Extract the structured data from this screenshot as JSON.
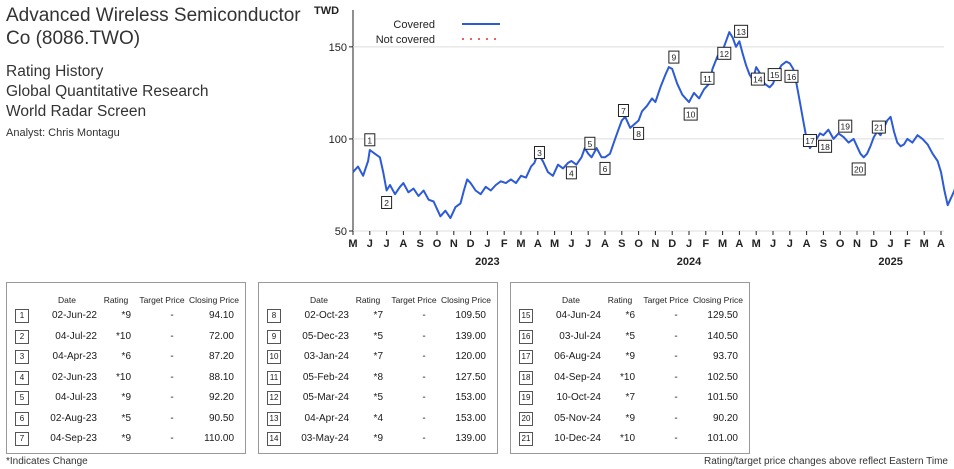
{
  "header": {
    "title": "Advanced Wireless Semiconductor Co (8086.TWO)",
    "subtitle1": "Rating History",
    "subtitle2": "Global Quantitative Research",
    "subtitle3": "World Radar Screen",
    "analyst": "Analyst: Chris Montagu"
  },
  "table_headers": {
    "date": "Date",
    "rating": "Rating",
    "target": "Target Price",
    "closing": "Closing Price"
  },
  "table1": [
    {
      "n": "1",
      "date": "02-Jun-22",
      "rating": "*9",
      "target": "-",
      "close": "94.10"
    },
    {
      "n": "2",
      "date": "04-Jul-22",
      "rating": "*10",
      "target": "-",
      "close": "72.00"
    },
    {
      "n": "3",
      "date": "04-Apr-23",
      "rating": "*6",
      "target": "-",
      "close": "87.20"
    },
    {
      "n": "4",
      "date": "02-Jun-23",
      "rating": "*10",
      "target": "-",
      "close": "88.10"
    },
    {
      "n": "5",
      "date": "04-Jul-23",
      "rating": "*9",
      "target": "-",
      "close": "92.20"
    },
    {
      "n": "6",
      "date": "02-Aug-23",
      "rating": "*5",
      "target": "-",
      "close": "90.50"
    },
    {
      "n": "7",
      "date": "04-Sep-23",
      "rating": "*9",
      "target": "-",
      "close": "110.00"
    }
  ],
  "table2": [
    {
      "n": "8",
      "date": "02-Oct-23",
      "rating": "*7",
      "target": "-",
      "close": "109.50"
    },
    {
      "n": "9",
      "date": "05-Dec-23",
      "rating": "*5",
      "target": "-",
      "close": "139.00"
    },
    {
      "n": "10",
      "date": "03-Jan-24",
      "rating": "*7",
      "target": "-",
      "close": "120.00"
    },
    {
      "n": "11",
      "date": "05-Feb-24",
      "rating": "*8",
      "target": "-",
      "close": "127.50"
    },
    {
      "n": "12",
      "date": "05-Mar-24",
      "rating": "*5",
      "target": "-",
      "close": "153.00"
    },
    {
      "n": "13",
      "date": "04-Apr-24",
      "rating": "*4",
      "target": "-",
      "close": "153.00"
    },
    {
      "n": "14",
      "date": "03-May-24",
      "rating": "*9",
      "target": "-",
      "close": "139.00"
    }
  ],
  "table3": [
    {
      "n": "15",
      "date": "04-Jun-24",
      "rating": "*6",
      "target": "-",
      "close": "129.50"
    },
    {
      "n": "16",
      "date": "03-Jul-24",
      "rating": "*5",
      "target": "-",
      "close": "140.50"
    },
    {
      "n": "17",
      "date": "06-Aug-24",
      "rating": "*9",
      "target": "-",
      "close": "93.70"
    },
    {
      "n": "18",
      "date": "04-Sep-24",
      "rating": "*10",
      "target": "-",
      "close": "102.50"
    },
    {
      "n": "19",
      "date": "10-Oct-24",
      "rating": "*7",
      "target": "-",
      "close": "101.50"
    },
    {
      "n": "20",
      "date": "05-Nov-24",
      "rating": "*9",
      "target": "-",
      "close": "90.20"
    },
    {
      "n": "21",
      "date": "10-Dec-24",
      "rating": "*10",
      "target": "-",
      "close": "101.00"
    }
  ],
  "footer": {
    "left": "*Indicates Change",
    "right": "Rating/target price changes above reflect Eastern Time"
  },
  "chart_data": {
    "type": "line",
    "ylabel": "TWD",
    "ylim": [
      50,
      170
    ],
    "yticks": [
      50,
      100,
      150
    ],
    "month_labels": [
      "M",
      "J",
      "J",
      "A",
      "S",
      "O",
      "N",
      "D",
      "J",
      "F",
      "M",
      "A",
      "M",
      "J",
      "J",
      "A",
      "S",
      "O",
      "N",
      "D",
      "J",
      "F",
      "M",
      "A",
      "M",
      "J",
      "J",
      "A",
      "S",
      "O",
      "N",
      "D",
      "J",
      "F",
      "M",
      "A"
    ],
    "year_labels": [
      {
        "label": "2023",
        "month_index": 8
      },
      {
        "label": "2024",
        "month_index": 20
      },
      {
        "label": "2025",
        "month_index": 32
      }
    ],
    "legend": [
      {
        "name": "Covered",
        "color": "#2d5bd6",
        "style": "solid"
      },
      {
        "name": "Not covered",
        "color": "#e03030",
        "style": "dotted"
      }
    ],
    "series": [
      {
        "name": "Covered",
        "color": "#2d5bd6",
        "points": [
          [
            0,
            82
          ],
          [
            0.3,
            85
          ],
          [
            0.6,
            80
          ],
          [
            0.9,
            88
          ],
          [
            1.0,
            94
          ],
          [
            1.3,
            92
          ],
          [
            1.6,
            90
          ],
          [
            1.8,
            82
          ],
          [
            2.0,
            72
          ],
          [
            2.2,
            75
          ],
          [
            2.5,
            70
          ],
          [
            2.8,
            74
          ],
          [
            3.0,
            76
          ],
          [
            3.3,
            71
          ],
          [
            3.6,
            73
          ],
          [
            3.9,
            69
          ],
          [
            4.2,
            72
          ],
          [
            4.5,
            67
          ],
          [
            4.8,
            66
          ],
          [
            5.0,
            62
          ],
          [
            5.2,
            58
          ],
          [
            5.5,
            61
          ],
          [
            5.8,
            57
          ],
          [
            6.1,
            63
          ],
          [
            6.4,
            65
          ],
          [
            6.6,
            72
          ],
          [
            6.8,
            78
          ],
          [
            7.0,
            76
          ],
          [
            7.3,
            72
          ],
          [
            7.6,
            70
          ],
          [
            7.9,
            74
          ],
          [
            8.2,
            72
          ],
          [
            8.5,
            75
          ],
          [
            8.8,
            77
          ],
          [
            9.1,
            76
          ],
          [
            9.4,
            78
          ],
          [
            9.7,
            76
          ],
          [
            10.0,
            80
          ],
          [
            10.3,
            79
          ],
          [
            10.6,
            85
          ],
          [
            10.8,
            87
          ],
          [
            11.0,
            92
          ],
          [
            11.3,
            88
          ],
          [
            11.6,
            82
          ],
          [
            11.9,
            80
          ],
          [
            12.2,
            86
          ],
          [
            12.5,
            84
          ],
          [
            12.8,
            87
          ],
          [
            13.0,
            88
          ],
          [
            13.3,
            86
          ],
          [
            13.6,
            90
          ],
          [
            13.8,
            95
          ],
          [
            14.0,
            92
          ],
          [
            14.2,
            90
          ],
          [
            14.5,
            95
          ],
          [
            14.8,
            90
          ],
          [
            15.0,
            90
          ],
          [
            15.3,
            92
          ],
          [
            15.6,
            100
          ],
          [
            15.8,
            105
          ],
          [
            16.0,
            110
          ],
          [
            16.2,
            112
          ],
          [
            16.5,
            106
          ],
          [
            17.0,
            110
          ],
          [
            17.2,
            115
          ],
          [
            17.5,
            118
          ],
          [
            17.8,
            122
          ],
          [
            18.0,
            120
          ],
          [
            18.3,
            128
          ],
          [
            18.6,
            135
          ],
          [
            18.8,
            139
          ],
          [
            19.0,
            138
          ],
          [
            19.3,
            130
          ],
          [
            19.6,
            124
          ],
          [
            19.8,
            122
          ],
          [
            20.0,
            120
          ],
          [
            20.3,
            125
          ],
          [
            20.6,
            122
          ],
          [
            20.9,
            127
          ],
          [
            21.2,
            130
          ],
          [
            21.4,
            138
          ],
          [
            21.7,
            145
          ],
          [
            22.0,
            148
          ],
          [
            22.2,
            153
          ],
          [
            22.4,
            158
          ],
          [
            22.6,
            155
          ],
          [
            22.8,
            150
          ],
          [
            23.0,
            153
          ],
          [
            23.2,
            146
          ],
          [
            23.4,
            140
          ],
          [
            23.6,
            135
          ],
          [
            23.8,
            132
          ],
          [
            24.0,
            139
          ],
          [
            24.2,
            136
          ],
          [
            24.5,
            130
          ],
          [
            24.8,
            128
          ],
          [
            25.0,
            130
          ],
          [
            25.2,
            135
          ],
          [
            25.5,
            140
          ],
          [
            25.8,
            142
          ],
          [
            26.0,
            141
          ],
          [
            26.2,
            138
          ],
          [
            26.4,
            130
          ],
          [
            26.6,
            120
          ],
          [
            26.8,
            110
          ],
          [
            27.0,
            100
          ],
          [
            27.2,
            95
          ],
          [
            27.4,
            98
          ],
          [
            27.6,
            100
          ],
          [
            27.8,
            103
          ],
          [
            28.0,
            102
          ],
          [
            28.3,
            105
          ],
          [
            28.6,
            100
          ],
          [
            28.9,
            103
          ],
          [
            29.2,
            101
          ],
          [
            29.5,
            98
          ],
          [
            29.8,
            100
          ],
          [
            30.0,
            96
          ],
          [
            30.2,
            92
          ],
          [
            30.4,
            90
          ],
          [
            30.6,
            92
          ],
          [
            30.8,
            96
          ],
          [
            31.0,
            101
          ],
          [
            31.2,
            104
          ],
          [
            31.4,
            102
          ],
          [
            31.6,
            106
          ],
          [
            31.8,
            110
          ],
          [
            32.0,
            112
          ],
          [
            32.2,
            104
          ],
          [
            32.4,
            98
          ],
          [
            32.6,
            96
          ],
          [
            32.8,
            97
          ],
          [
            33.0,
            100
          ],
          [
            33.3,
            98
          ],
          [
            33.6,
            102
          ],
          [
            33.9,
            100
          ],
          [
            34.2,
            97
          ],
          [
            34.5,
            92
          ],
          [
            34.8,
            88
          ],
          [
            35.0,
            82
          ],
          [
            35.2,
            72
          ],
          [
            35.4,
            64
          ],
          [
            35.6,
            68
          ],
          [
            35.8,
            72
          ],
          [
            36.0,
            78
          ]
        ]
      }
    ],
    "annotations": [
      {
        "n": "1",
        "m": 1.0,
        "v": 94.1
      },
      {
        "n": "2",
        "m": 2.0,
        "v": 72.0
      },
      {
        "n": "3",
        "m": 11.1,
        "v": 87.2
      },
      {
        "n": "4",
        "m": 13.0,
        "v": 88.1
      },
      {
        "n": "5",
        "m": 14.1,
        "v": 92.2
      },
      {
        "n": "6",
        "m": 15.0,
        "v": 90.5
      },
      {
        "n": "7",
        "m": 16.1,
        "v": 110.0
      },
      {
        "n": "8",
        "m": 17.0,
        "v": 109.5
      },
      {
        "n": "9",
        "m": 19.1,
        "v": 139.0
      },
      {
        "n": "10",
        "m": 20.1,
        "v": 120.0
      },
      {
        "n": "11",
        "m": 21.1,
        "v": 127.5
      },
      {
        "n": "12",
        "m": 22.1,
        "v": 153.0
      },
      {
        "n": "13",
        "m": 23.1,
        "v": 153.0
      },
      {
        "n": "14",
        "m": 24.1,
        "v": 139.0
      },
      {
        "n": "15",
        "m": 25.1,
        "v": 129.5
      },
      {
        "n": "16",
        "m": 26.1,
        "v": 140.5
      },
      {
        "n": "17",
        "m": 27.2,
        "v": 93.7
      },
      {
        "n": "18",
        "m": 28.1,
        "v": 102.5
      },
      {
        "n": "19",
        "m": 29.3,
        "v": 101.5
      },
      {
        "n": "20",
        "m": 30.1,
        "v": 90.2
      },
      {
        "n": "21",
        "m": 31.3,
        "v": 101.0
      }
    ]
  }
}
